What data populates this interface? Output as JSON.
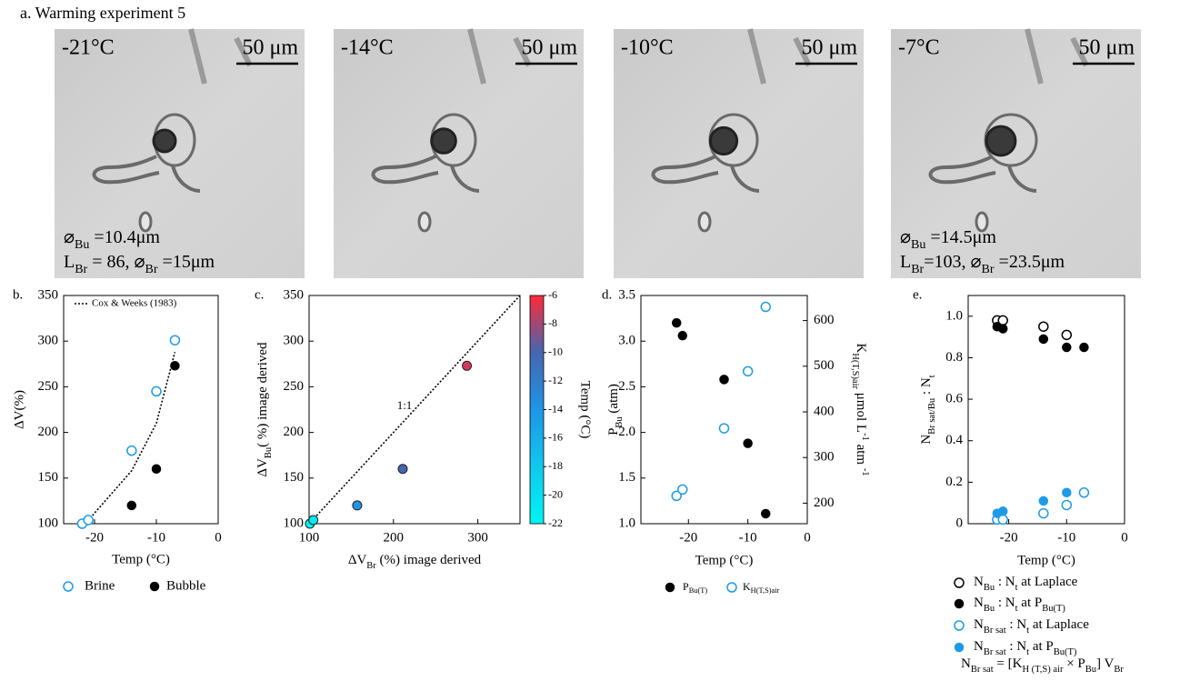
{
  "title": "a. Warming experiment 5",
  "images": [
    {
      "temperature": "-21°C",
      "scale_bar": "50 μm",
      "annotations": [
        [
          "⌀",
          "Bu",
          " =10.4μm"
        ],
        [
          "L",
          "Br",
          " = 86,  ⌀",
          "Br",
          " =15μm"
        ]
      ]
    },
    {
      "temperature": "-14°C",
      "scale_bar": "50 μm"
    },
    {
      "temperature": "-10°C",
      "scale_bar": "50 μm"
    },
    {
      "temperature": "-7°C",
      "scale_bar": "50 μm",
      "annotations": [
        [
          "⌀",
          "Bu",
          " =14.5μm"
        ],
        [
          "L",
          "Br",
          "=103,  ⌀",
          "Br",
          " =23.5μm"
        ]
      ]
    }
  ],
  "chart_data": [
    {
      "type": "scatter",
      "label": "b.",
      "xlabel": "Temp (°C)",
      "ylabel": "ΔV(%)",
      "xlim": [
        -25,
        0
      ],
      "xticks": [
        -20,
        -10,
        0
      ],
      "ylim": [
        100,
        350
      ],
      "yticks": [
        100,
        150,
        200,
        250,
        300,
        350
      ],
      "series": [
        {
          "name": "Cox & Weeks (1983)",
          "color": "#000000",
          "marker": "none",
          "linestyle": "dotted",
          "x": [
            -21.5,
            -14,
            -10,
            -7
          ],
          "values": [
            100,
            158,
            210,
            288
          ]
        },
        {
          "name": "Brine",
          "color": "#1e9be6",
          "marker": "open",
          "x": [
            -22,
            -21,
            -14,
            -10,
            -7
          ],
          "values": [
            100,
            104,
            180,
            245,
            301
          ]
        },
        {
          "name": "Bubble",
          "color": "#000000",
          "marker": "filled",
          "x": [
            -14,
            -10,
            -7
          ],
          "values": [
            120,
            160,
            273
          ]
        }
      ]
    },
    {
      "type": "scatter",
      "label": "c.",
      "xlabel": [
        "ΔV",
        "Br",
        " (%) image derived"
      ],
      "ylabel": [
        "ΔV",
        "Bu",
        "( %) image derived"
      ],
      "annotation": "1:1",
      "xlim": [
        100,
        350
      ],
      "xticks": [
        100,
        200,
        300
      ],
      "ylim": [
        100,
        350
      ],
      "yticks": [
        100,
        150,
        200,
        250,
        300,
        350
      ],
      "series": [
        {
          "color": "#000000",
          "marker": "none",
          "linestyle": "dotted",
          "x": [
            100,
            350
          ],
          "values": [
            100,
            350
          ]
        },
        {
          "marker": "colored",
          "x": [
            101,
            105,
            157,
            211,
            287
          ],
          "values": [
            100,
            104,
            120,
            160,
            273
          ],
          "temps": [
            -22,
            -21,
            -14,
            -10,
            -7
          ]
        }
      ],
      "colorbar": {
        "label": "Temp (°C)",
        "lim": [
          -22,
          -6
        ],
        "ticks": [
          -22,
          -20,
          -18,
          -16,
          -14,
          -12,
          -10,
          -8,
          -6
        ],
        "colors": [
          "#00f5f5",
          "#10c8ee",
          "#1e95e6",
          "#4566b0",
          "#ff2a3a"
        ]
      }
    },
    {
      "type": "scatter",
      "label": "d.",
      "xlabel": "Temp (°C)",
      "ylabel": [
        "P",
        "Bu",
        " (atm)"
      ],
      "y2label": [
        "K",
        "H(T,S)air",
        " μmol L",
        "-1",
        " atm ",
        "-1"
      ],
      "xlim": [
        -28,
        0
      ],
      "xticks": [
        -20,
        -10,
        0
      ],
      "ylim": [
        1,
        3.5
      ],
      "yticks": [
        {
          "value": 1,
          "label": "1.0"
        },
        1.5,
        {
          "value": 2,
          "label": "2.0"
        },
        2.5,
        {
          "value": 3,
          "label": "3.0"
        },
        3.5
      ],
      "y2lim": [
        155,
        655
      ],
      "y2ticks": [
        200,
        300,
        400,
        500,
        600
      ],
      "series": [
        {
          "name": [
            "P",
            "Bu(T)"
          ],
          "color": "#000000",
          "marker": "filled",
          "x": [
            -22,
            -21,
            -14,
            -10,
            -7
          ],
          "values": [
            3.2,
            3.06,
            2.58,
            1.88,
            1.11
          ]
        },
        {
          "name": [
            "K",
            "H(T,S)air"
          ],
          "color": "#1e9be6",
          "marker": "open",
          "axis": "y2",
          "x": [
            -22,
            -21,
            -14,
            -10,
            -7
          ],
          "values": [
            216,
            230,
            364,
            489,
            630
          ]
        }
      ]
    },
    {
      "type": "scatter",
      "label": "e.",
      "xlabel": "Temp (°C)",
      "ylabel": [
        "N",
        "Br sat/Bu",
        " : N",
        "t"
      ],
      "xlim": [
        -27,
        0
      ],
      "xticks": [
        -20,
        -10,
        0
      ],
      "ylim": [
        0,
        1.1
      ],
      "yticks": [
        0,
        0.2,
        0.4,
        0.6,
        0.8,
        {
          "value": 1,
          "label": "1.0"
        }
      ],
      "series": [
        {
          "name": [
            "N",
            "Bu",
            " : N",
            "t",
            " at Laplace"
          ],
          "color": "#000000",
          "marker": "open",
          "x": [
            -22,
            -21,
            -14,
            -10
          ],
          "values": [
            0.98,
            0.98,
            0.95,
            0.91
          ]
        },
        {
          "name": [
            "N",
            "Bu",
            " : N",
            "t",
            " at P",
            "Bu(T)"
          ],
          "color": "#000000",
          "marker": "filled",
          "x": [
            -22,
            -21,
            -14,
            -10,
            -7
          ],
          "values": [
            0.95,
            0.94,
            0.89,
            0.85,
            0.85
          ]
        },
        {
          "name": [
            "N",
            "Br sat",
            " : N",
            "t",
            " at Laplace"
          ],
          "color": "#1e9be6",
          "marker": "open",
          "x": [
            -22,
            -21,
            -14,
            -10,
            -7
          ],
          "values": [
            0.02,
            0.02,
            0.05,
            0.09,
            0.15
          ]
        },
        {
          "name": [
            "N",
            "Br sat",
            " : N",
            "t",
            " at P",
            "Bu(T)"
          ],
          "color": "#1e9be6",
          "marker": "filled",
          "x": [
            -22,
            -21,
            -14,
            -10
          ],
          "values": [
            0.05,
            0.06,
            0.11,
            0.15
          ]
        }
      ],
      "formula": [
        "N",
        "Br sat",
        " = [K",
        "H (T,S) air",
        " × P",
        "Bu",
        "] V",
        "Br"
      ]
    }
  ]
}
